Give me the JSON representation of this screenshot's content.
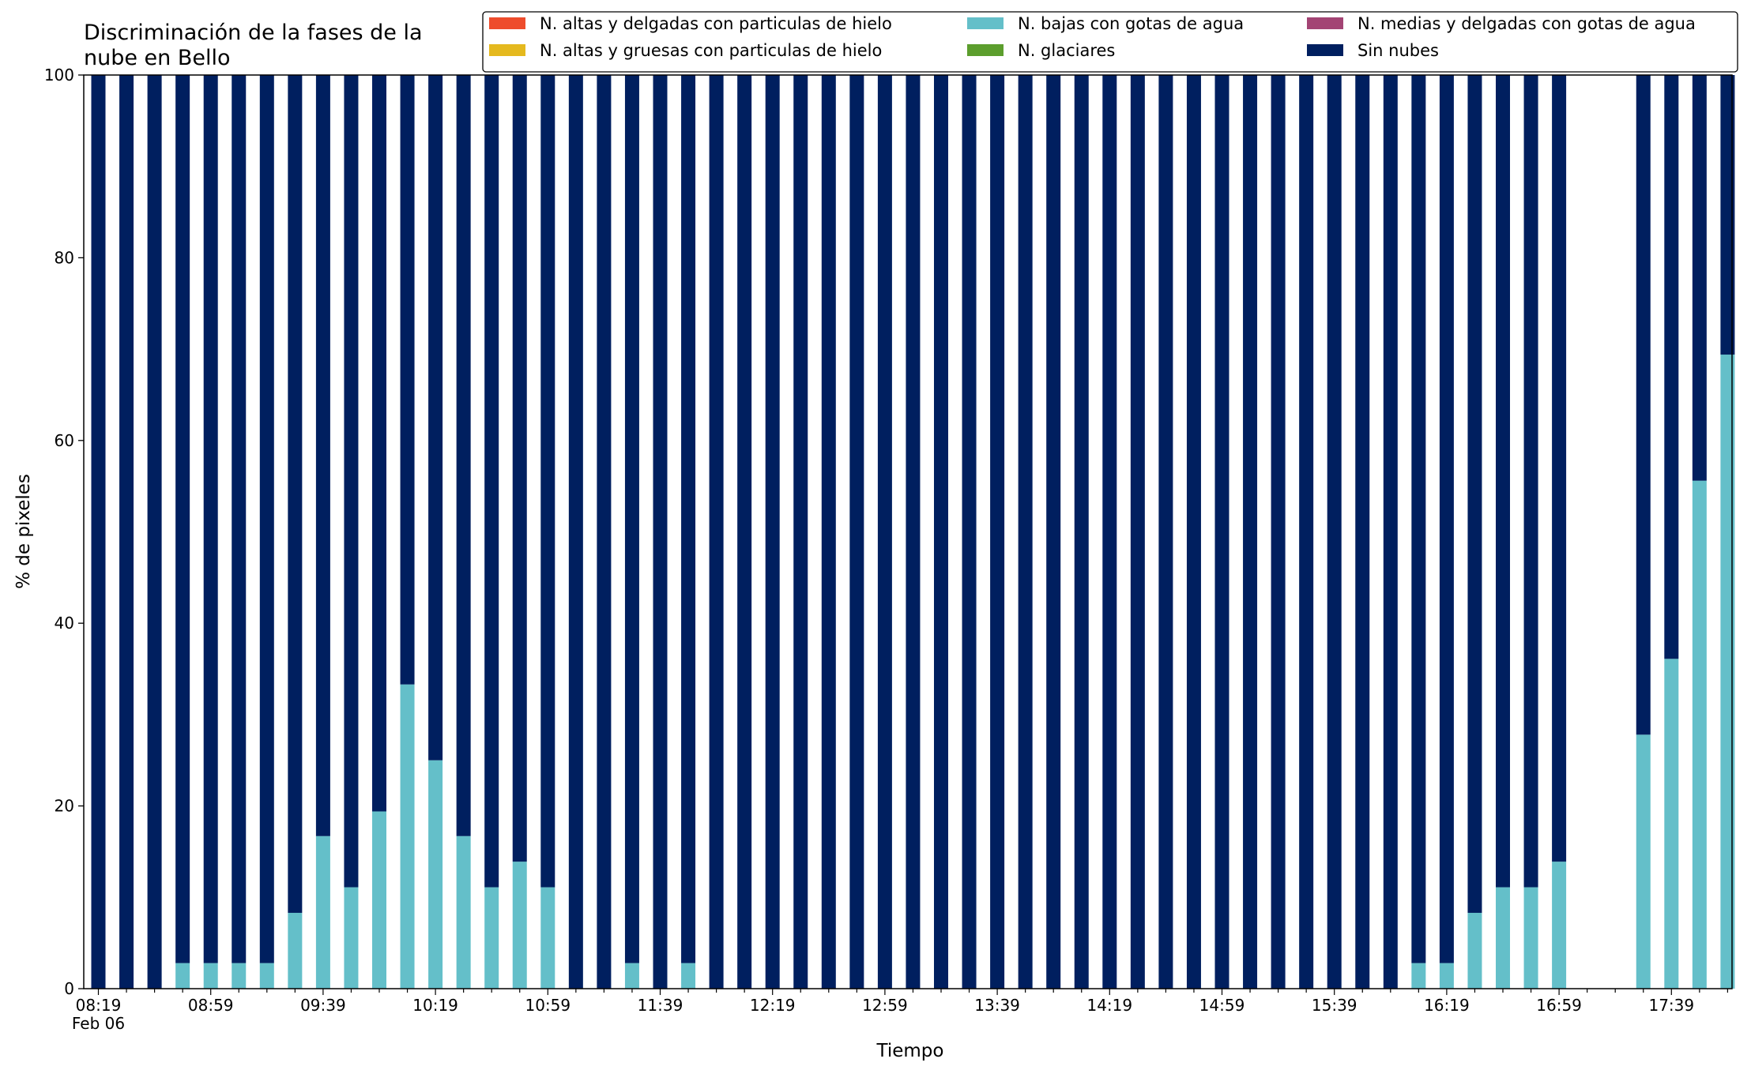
{
  "chart_data": {
    "type": "bar",
    "stacked": true,
    "title_lines": [
      "Discriminación de la fases de la",
      "nube en Bello"
    ],
    "xlabel": "Tiempo",
    "ylabel": "% de pixeles",
    "ylim": [
      0,
      100
    ],
    "y_ticks": [
      0,
      20,
      40,
      60,
      80,
      100
    ],
    "x_tick_labels": [
      "08:19",
      "08:59",
      "09:39",
      "10:19",
      "10:59",
      "11:39",
      "12:19",
      "12:59",
      "13:39",
      "14:19",
      "14:59",
      "15:39",
      "16:19",
      "16:59",
      "17:39"
    ],
    "x_date_label": "Feb 06",
    "grid": false,
    "legend_position": "top-right",
    "legend_columns": 3,
    "series": [
      {
        "name": "N. altas y delgadas con particulas de hielo",
        "color": "#ee4c2c",
        "values": [
          0,
          0,
          0,
          0,
          0,
          0,
          0,
          0,
          0,
          0,
          0,
          0,
          0,
          0,
          0,
          0,
          0,
          0,
          0,
          0,
          0,
          0,
          0,
          0,
          0,
          0,
          0,
          0,
          0,
          0,
          0,
          0,
          0,
          0,
          0,
          0,
          0,
          0,
          0,
          0,
          0,
          0,
          0,
          0,
          0,
          0,
          0,
          0,
          0,
          0,
          0,
          0,
          0,
          0,
          0,
          0,
          0,
          0,
          0
        ]
      },
      {
        "name": "N. altas y gruesas con particulas de hielo",
        "color": "#e5b91e",
        "values": [
          0,
          0,
          0,
          0,
          0,
          0,
          0,
          0,
          0,
          0,
          0,
          0,
          0,
          0,
          0,
          0,
          0,
          0,
          0,
          0,
          0,
          0,
          0,
          0,
          0,
          0,
          0,
          0,
          0,
          0,
          0,
          0,
          0,
          0,
          0,
          0,
          0,
          0,
          0,
          0,
          0,
          0,
          0,
          0,
          0,
          0,
          0,
          0,
          0,
          0,
          0,
          0,
          0,
          0,
          0,
          0,
          0,
          0,
          0
        ]
      },
      {
        "name": "N. bajas con gotas de agua",
        "color": "#64bfc9",
        "values": [
          0,
          0,
          0,
          2.8,
          2.8,
          2.8,
          2.8,
          8.3,
          16.7,
          11.1,
          19.4,
          33.3,
          25,
          16.7,
          11.1,
          13.9,
          11.1,
          0,
          0,
          2.8,
          0,
          2.8,
          0,
          0,
          0,
          0,
          0,
          0,
          0,
          0,
          0,
          0,
          0,
          0,
          0,
          0,
          0,
          0,
          0,
          0,
          0,
          0,
          0,
          0,
          0,
          0,
          0,
          2.8,
          2.8,
          8.3,
          11.1,
          11.1,
          13.9,
          0,
          0,
          27.8,
          36.1,
          55.6,
          69.4
        ]
      },
      {
        "name": "N. glaciares",
        "color": "#5c9e2d",
        "values": [
          0,
          0,
          0,
          0,
          0,
          0,
          0,
          0,
          0,
          0,
          0,
          0,
          0,
          0,
          0,
          0,
          0,
          0,
          0,
          0,
          0,
          0,
          0,
          0,
          0,
          0,
          0,
          0,
          0,
          0,
          0,
          0,
          0,
          0,
          0,
          0,
          0,
          0,
          0,
          0,
          0,
          0,
          0,
          0,
          0,
          0,
          0,
          0,
          0,
          0,
          0,
          0,
          0,
          0,
          0,
          0,
          0,
          0,
          0
        ]
      },
      {
        "name": "N. medias y delgadas con gotas de agua",
        "color": "#a34474",
        "values": [
          0,
          0,
          0,
          0,
          0,
          0,
          0,
          0,
          0,
          0,
          0,
          0,
          0,
          0,
          0,
          0,
          0,
          0,
          0,
          0,
          0,
          0,
          0,
          0,
          0,
          0,
          0,
          0,
          0,
          0,
          0,
          0,
          0,
          0,
          0,
          0,
          0,
          0,
          0,
          0,
          0,
          0,
          0,
          0,
          0,
          0,
          0,
          0,
          0,
          0,
          0,
          0,
          0,
          0,
          0,
          0,
          0,
          0,
          0
        ]
      },
      {
        "name": "Sin nubes",
        "color": "#001f5f",
        "values": [
          100,
          100,
          100,
          97.2,
          97.2,
          97.2,
          97.2,
          91.7,
          83.3,
          88.9,
          80.6,
          66.7,
          75,
          83.3,
          88.9,
          86.1,
          88.9,
          100,
          100,
          97.2,
          100,
          97.2,
          100,
          100,
          100,
          100,
          100,
          100,
          100,
          100,
          100,
          100,
          100,
          100,
          100,
          100,
          100,
          100,
          100,
          100,
          100,
          100,
          100,
          100,
          100,
          100,
          100,
          97.2,
          97.2,
          91.7,
          88.9,
          88.9,
          86.1,
          0,
          0,
          72.2,
          63.9,
          44.4,
          30.6
        ]
      }
    ]
  }
}
